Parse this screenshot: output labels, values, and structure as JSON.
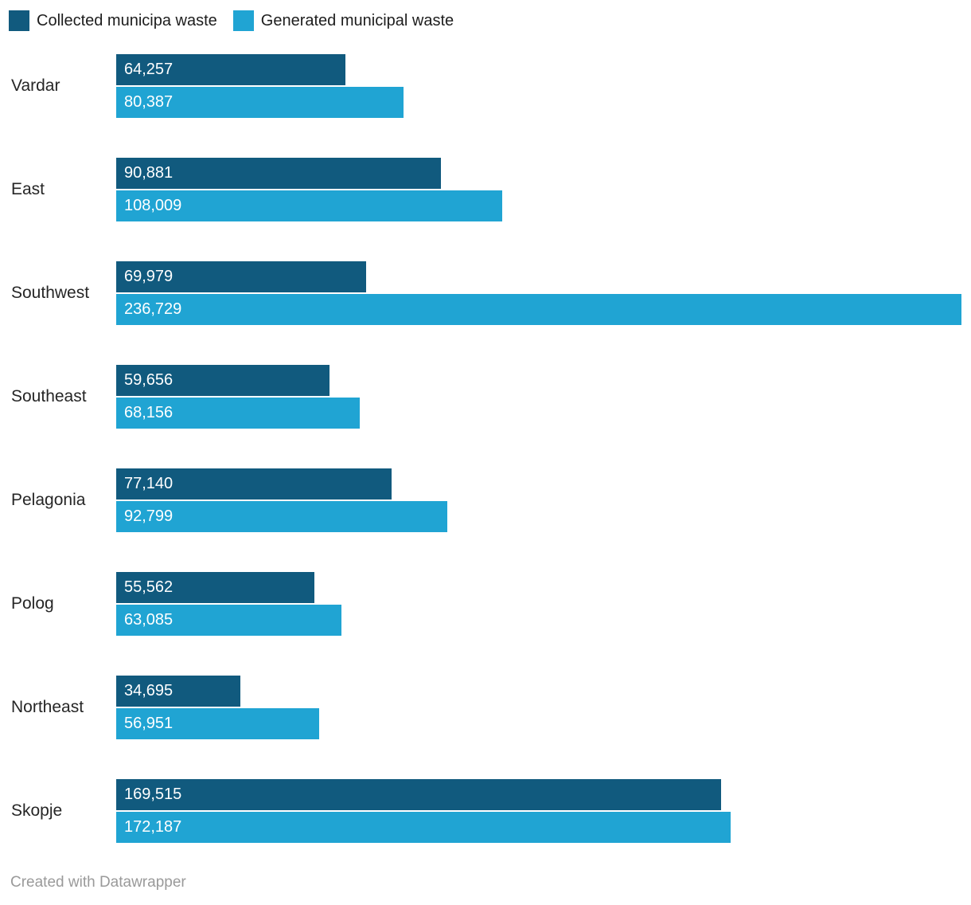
{
  "legend": {
    "items": [
      {
        "label": "Collected municipa waste",
        "color": "#115a7e"
      },
      {
        "label": "Generated municipal waste",
        "color": "#20a4d3"
      }
    ]
  },
  "chart_data": {
    "type": "bar",
    "orientation": "horizontal",
    "title": "",
    "xlabel": "",
    "ylabel": "",
    "grid": false,
    "legend_position": "top",
    "xlim": [
      0,
      236729
    ],
    "categories": [
      "Vardar",
      "East",
      "Southwest",
      "Southeast",
      "Pelagonia",
      "Polog",
      "Northeast",
      "Skopje"
    ],
    "series": [
      {
        "name": "Collected municipa waste",
        "color": "#115a7e",
        "values": [
          64257,
          90881,
          69979,
          59656,
          77140,
          55562,
          34695,
          169515
        ],
        "labels": [
          "64,257",
          "90,881",
          "69,979",
          "59,656",
          "77,140",
          "55,562",
          "34,695",
          "169,515"
        ]
      },
      {
        "name": "Generated municipal waste",
        "color": "#20a4d3",
        "values": [
          80387,
          108009,
          236729,
          68156,
          92799,
          63085,
          56951,
          172187
        ],
        "labels": [
          "80,387",
          "108,009",
          "236,729",
          "68,156",
          "92,799",
          "63,085",
          "56,951",
          "172,187"
        ]
      }
    ]
  },
  "footer": {
    "text": "Created with Datawrapper"
  }
}
